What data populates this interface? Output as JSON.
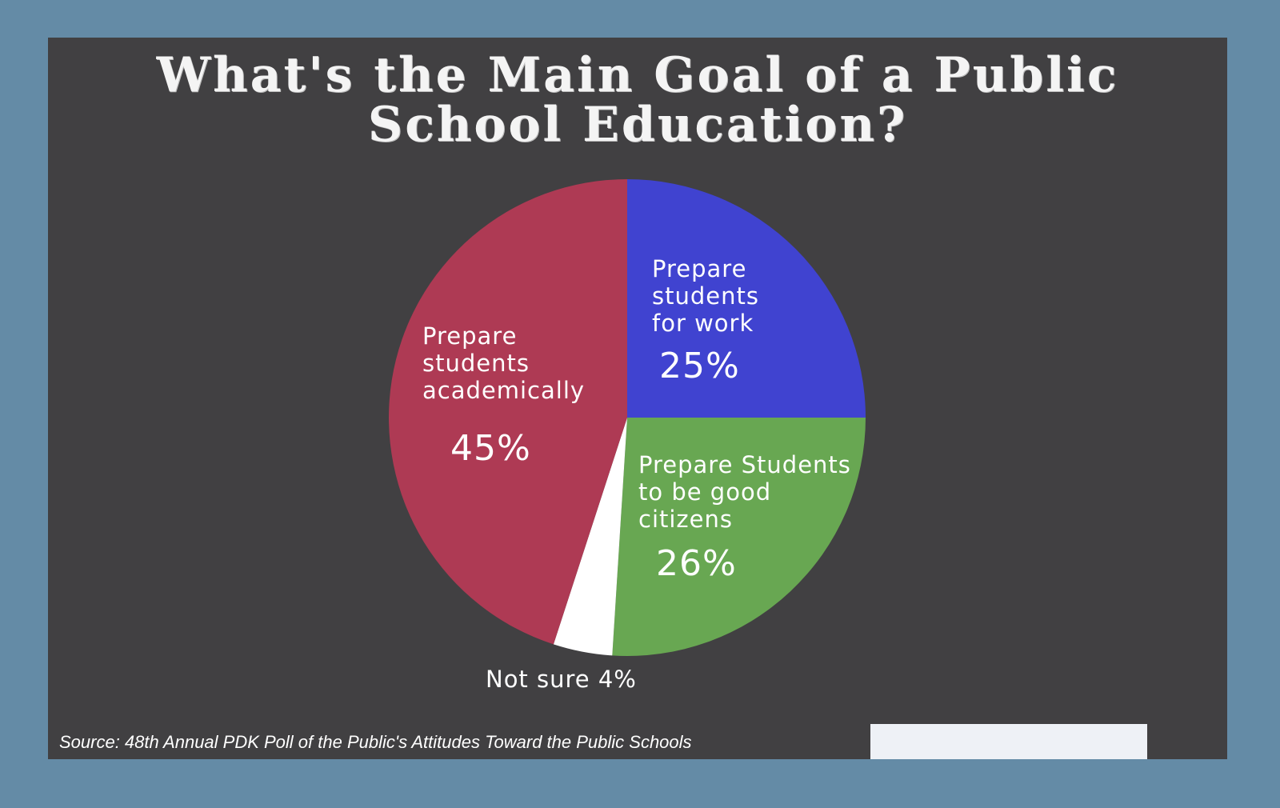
{
  "title_line1": "What's the Main Goal of a Public",
  "title_line2": "School Education?",
  "source": "Source: 48th Annual PDK Poll of the Public's Attitudes Toward the Public Schools",
  "chart_data": {
    "type": "pie",
    "title": "What's the Main Goal of a Public School Education?",
    "slices": [
      {
        "label": "Prepare students for work",
        "value": 25,
        "value_label": "25%",
        "color": "#4043d0"
      },
      {
        "label": "Prepare Students to be good citizens",
        "value": 26,
        "value_label": "26%",
        "color": "#68a752"
      },
      {
        "label": "Not sure",
        "value": 4,
        "value_label": "Not sure 4%",
        "color": "#ffffff"
      },
      {
        "label": "Prepare students academically",
        "value": 45,
        "value_label": "45%",
        "color": "#ae3a54"
      }
    ],
    "start_angle": "12 o'clock",
    "direction": "clockwise"
  },
  "display": {
    "work_label": "Prepare\nstudents\nfor work",
    "citizens_label": "Prepare Students\nto be good\ncitizens",
    "academic_label": "Prepare\nstudents\nacademically"
  }
}
